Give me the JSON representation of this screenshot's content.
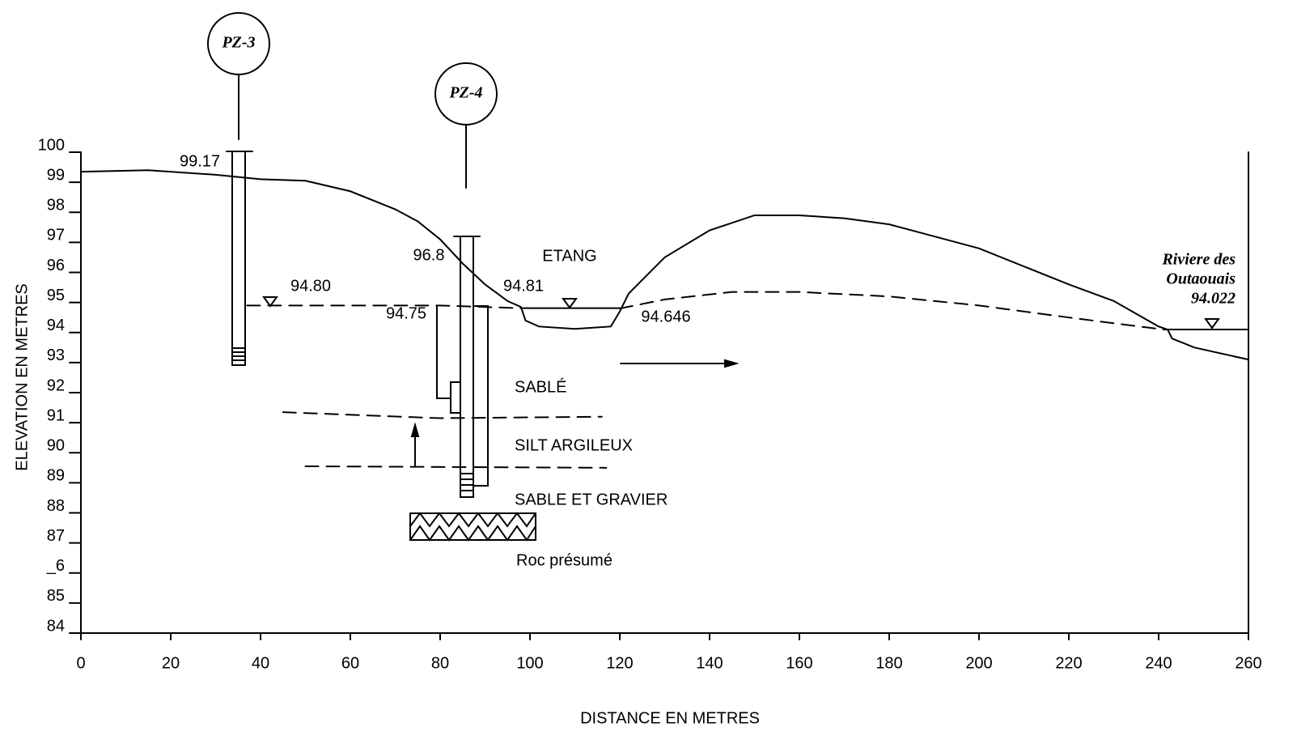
{
  "chart_data": {
    "type": "line",
    "xlabel": "DISTANCE EN METRES",
    "ylabel": "ELEVATION EN METRES",
    "xlim": [
      0,
      260
    ],
    "ylim": [
      84,
      100
    ],
    "xticks": [
      0,
      20,
      40,
      60,
      80,
      100,
      120,
      140,
      160,
      180,
      200,
      220,
      240,
      260
    ],
    "yticks": [
      84,
      85,
      {
        "value": 86,
        "label": "_6"
      },
      87,
      88,
      89,
      90,
      91,
      92,
      93,
      94,
      95,
      96,
      97,
      98,
      99,
      100
    ],
    "series": [
      {
        "color": "#000000",
        "dashed": false,
        "x": [
          0,
          15,
          30,
          40,
          50,
          60,
          70,
          75,
          80,
          85,
          90,
          95,
          98,
          99,
          102,
          110,
          118,
          120,
          122,
          130,
          140,
          150,
          160,
          170,
          180,
          200,
          220,
          230,
          240,
          242,
          243,
          248,
          260
        ],
        "values": [
          99.35,
          99.4,
          99.25,
          99.1,
          99.05,
          98.7,
          98.1,
          97.7,
          97.1,
          96.3,
          95.6,
          95.05,
          94.85,
          94.4,
          94.2,
          94.12,
          94.2,
          94.7,
          95.3,
          96.5,
          97.4,
          97.9,
          97.9,
          97.8,
          97.6,
          96.8,
          95.6,
          95.05,
          94.2,
          94.1,
          93.8,
          93.5,
          93.1
        ]
      },
      {
        "color": "#000000",
        "dashed": true,
        "x": [
          37,
          60,
          80,
          98,
          null,
          120,
          130,
          145,
          160,
          180,
          200,
          220,
          241
        ],
        "values": [
          94.9,
          94.9,
          94.9,
          94.81,
          null,
          94.8,
          95.1,
          95.35,
          95.35,
          95.2,
          94.9,
          94.5,
          94.1
        ]
      },
      {
        "color": "#000000",
        "dashed": false,
        "x": [
          98,
          120
        ],
        "values": [
          94.81,
          94.81
        ]
      },
      {
        "color": "#000000",
        "dashed": false,
        "x": [
          241,
          260
        ],
        "values": [
          94.1,
          94.1
        ]
      },
      {
        "color": "#000000",
        "dashed": true,
        "x": [
          45,
          80,
          116
        ],
        "values": [
          91.35,
          91.15,
          91.2
        ]
      },
      {
        "color": "#000000",
        "dashed": true,
        "x": [
          50,
          117
        ],
        "values": [
          89.55,
          89.5
        ]
      }
    ],
    "annotations": [
      "PZ-3",
      "PZ-4",
      "99.17",
      "96.8",
      "94.80",
      "94.81",
      "94.75",
      "94.646",
      "ETANG",
      "SABLÉ",
      "SILT ARGILEUX",
      "SABLE ET GRAVIER",
      "Roc présumé",
      "Riviere des",
      "Outaouais",
      "94.022"
    ]
  }
}
